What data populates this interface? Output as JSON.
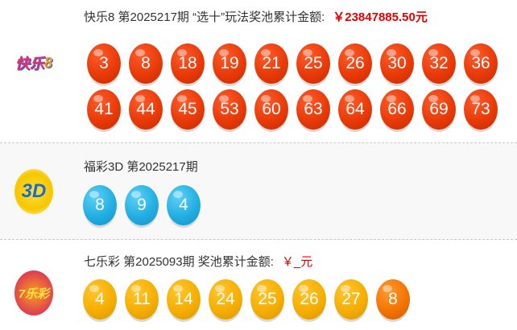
{
  "kl8": {
    "logo_text": "快乐8",
    "title": "快乐8 第2025217期 “选十”玩法奖池累计金额:",
    "amount": "￥23847885.50元",
    "balls": [
      "3",
      "8",
      "18",
      "19",
      "21",
      "25",
      "26",
      "30",
      "32",
      "36",
      "41",
      "44",
      "45",
      "53",
      "60",
      "63",
      "64",
      "66",
      "69",
      "73"
    ],
    "color": "#e83a08"
  },
  "fc3d": {
    "logo_text": "3D",
    "title": "福彩3D 第2025217期",
    "balls": [
      "8",
      "9",
      "4"
    ],
    "color": "#22aee2"
  },
  "qlc": {
    "logo_text": "7乐彩",
    "title": "七乐彩 第2025093期 奖池累计金额:",
    "amount": "￥_元",
    "balls": [
      "4",
      "11",
      "14",
      "24",
      "25",
      "26",
      "27"
    ],
    "special": "8",
    "color": "#f5ae00",
    "special_color": "#f27400"
  }
}
